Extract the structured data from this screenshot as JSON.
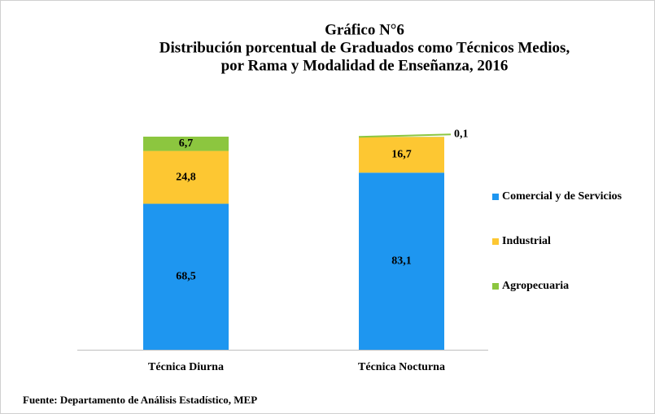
{
  "chart_data": {
    "type": "stacked_bar",
    "title": "Gráfico N°6",
    "subtitle": [
      "Distribución porcentual de Graduados como Técnicos Medios,",
      "por Rama y Modalidad de Enseñanza, 2016"
    ],
    "categories": [
      "Técnica Diurna",
      "Técnica Nocturna"
    ],
    "series": [
      {
        "name": "Comercial y de Servicios",
        "color": "#1e96f0",
        "values": [
          68.5,
          83.1
        ],
        "value_labels": [
          "68,5",
          "83,1"
        ]
      },
      {
        "name": "Industrial",
        "color": "#fdc732",
        "values": [
          24.8,
          16.7
        ],
        "value_labels": [
          "24,8",
          "16,7"
        ]
      },
      {
        "name": "Agropecuaria",
        "color": "#8cc63f",
        "values": [
          6.7,
          0.1
        ],
        "value_labels": [
          "6,7",
          "0,1"
        ]
      }
    ],
    "ylim": [
      0,
      100
    ],
    "legend": "right",
    "source": "Fuente: Departamento de Análisis Estadístico, MEP"
  }
}
